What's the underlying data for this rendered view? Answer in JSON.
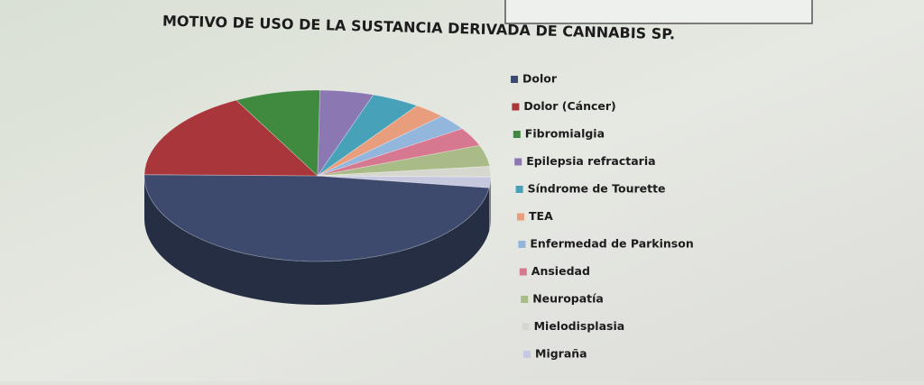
{
  "chart_data": {
    "type": "pie",
    "title": "MOTIVO DE USO DE LA SUSTANCIA DERIVADA DE CANNABIS SP.",
    "categories": [
      "Dolor",
      "Dolor (Cáncer)",
      "Fibromialgia",
      "Epilepsia refractaria",
      "Síndrome de Tourette",
      "TEA",
      "Enfermedad de Parkinson",
      "Ansiedad",
      "Neuropatía",
      "Mielodisplasia",
      "Migraña"
    ],
    "values": [
      48,
      17,
      8,
      5,
      4.5,
      3,
      3,
      3.5,
      4,
      2,
      2
    ],
    "colors": [
      "#3d4a6e",
      "#a8363a",
      "#3f8a3e",
      "#8b78b3",
      "#47a2b9",
      "#e89e7c",
      "#93b6dc",
      "#d77891",
      "#a9bb86",
      "#d6d8cf",
      "#c6c8e0"
    ],
    "legend": "right"
  }
}
